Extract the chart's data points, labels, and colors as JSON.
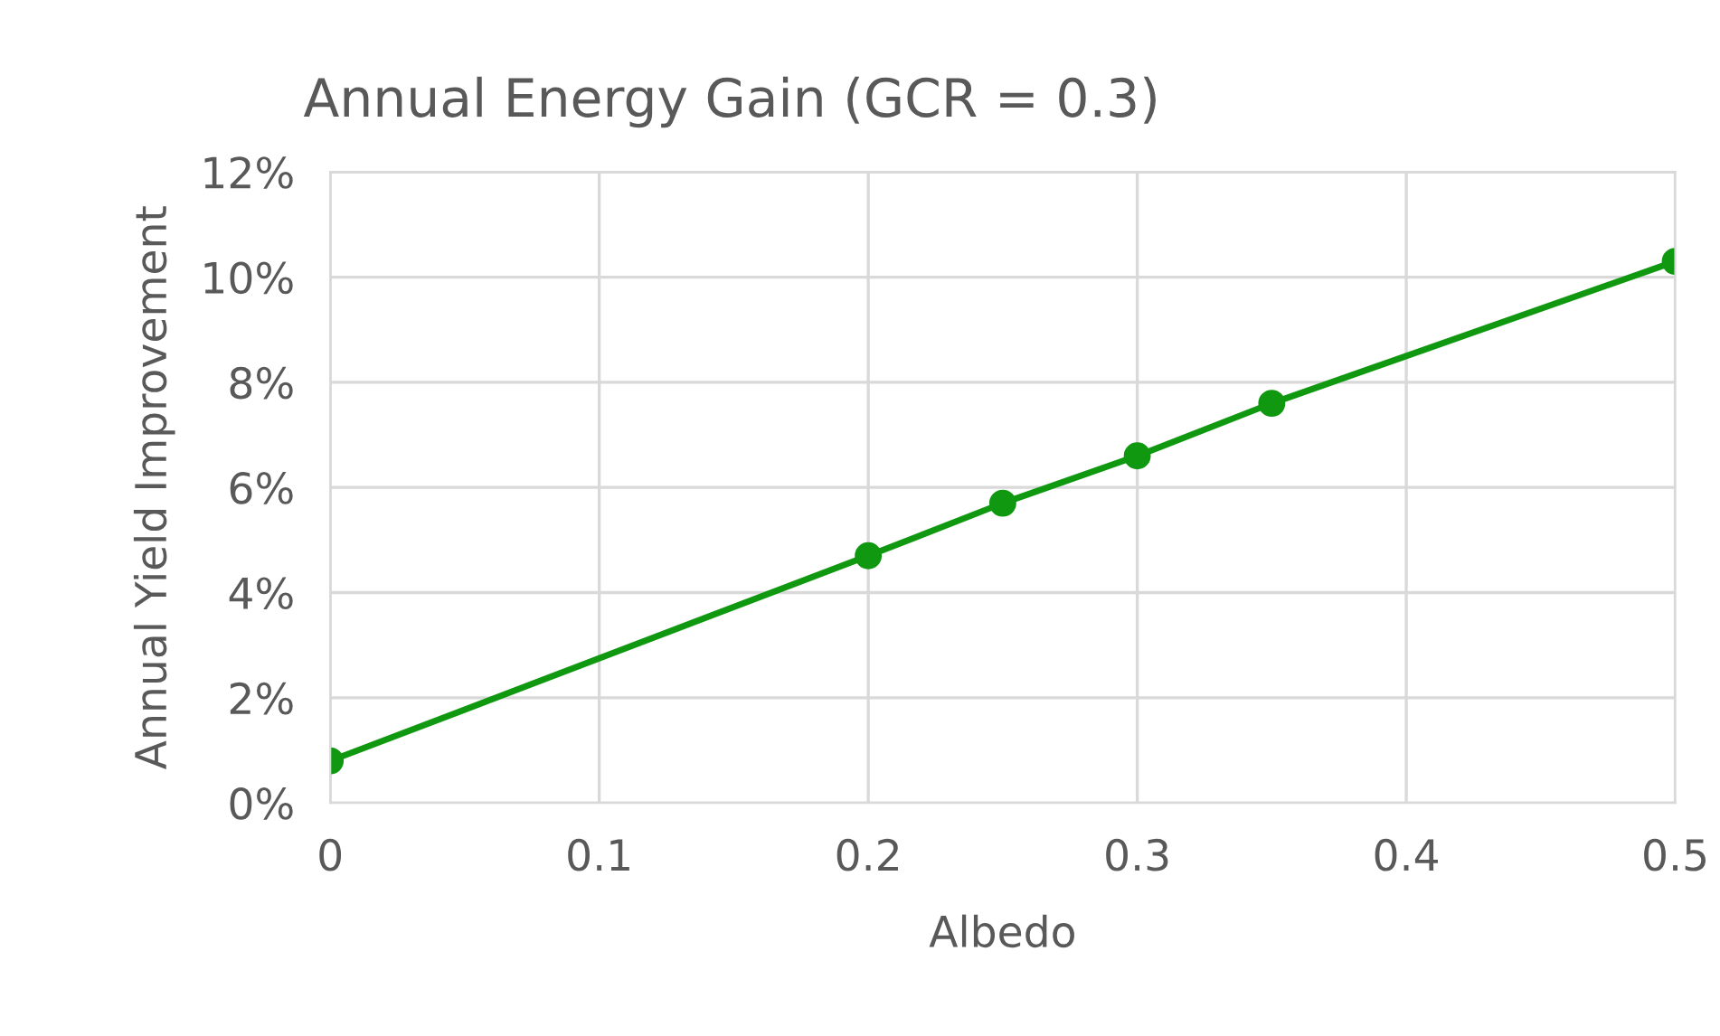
{
  "chart_data": {
    "type": "line",
    "title": "Annual Energy Gain (GCR = 0.3)",
    "xlabel": "Albedo",
    "ylabel": "Annual Yield Improvement",
    "x": [
      0,
      0.2,
      0.25,
      0.3,
      0.35,
      0.5
    ],
    "series": [
      {
        "color": "#109910",
        "values": [
          0.8,
          4.7,
          5.7,
          6.6,
          7.6,
          10.3
        ]
      }
    ],
    "xlim": [
      0,
      0.5
    ],
    "xticks": [
      0,
      0.1,
      0.2,
      0.3,
      0.4,
      0.5
    ],
    "ylim": [
      0,
      12
    ],
    "yticks": [
      {
        "value": 0,
        "label": "0%"
      },
      {
        "value": 2,
        "label": "2%"
      },
      {
        "value": 4,
        "label": "4%"
      },
      {
        "value": 6,
        "label": "6%"
      },
      {
        "value": 8,
        "label": "8%"
      },
      {
        "value": 10,
        "label": "10%"
      },
      {
        "value": 12,
        "label": "12%"
      }
    ],
    "grid": true,
    "legend": false,
    "marker": "circle",
    "line_style": "solid"
  }
}
